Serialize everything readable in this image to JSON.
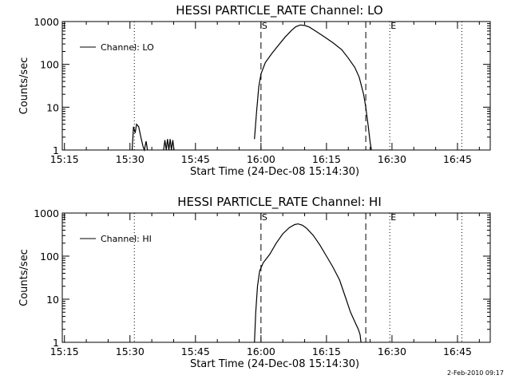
{
  "stamp": "2-Feb-2010 09:17",
  "chart_data": [
    {
      "type": "line",
      "title": "HESSI PARTICLE_RATE Channel: LO",
      "xlabel": "Start Time (24-Dec-08 15:14:30)",
      "ylabel": "Counts/sec",
      "x_unit": "minutes after 15:14:30",
      "xlim": [
        0.0,
        98.0
      ],
      "ylim": [
        1,
        1000
      ],
      "yscale": "log",
      "xticks": [
        {
          "x": 0.5,
          "label": "15:15"
        },
        {
          "x": 15.5,
          "label": "15:30"
        },
        {
          "x": 30.5,
          "label": "15:45"
        },
        {
          "x": 45.5,
          "label": "16:00"
        },
        {
          "x": 60.5,
          "label": "16:15"
        },
        {
          "x": 75.5,
          "label": "16:30"
        },
        {
          "x": 90.5,
          "label": "16:45"
        }
      ],
      "yticks": [
        {
          "y": 1,
          "label": "1"
        },
        {
          "y": 10,
          "label": "10"
        },
        {
          "y": 100,
          "label": "100"
        },
        {
          "y": 1000,
          "label": "1000"
        }
      ],
      "legend": {
        "position": "top-left",
        "entries": [
          "Channel: LO"
        ]
      },
      "vlines": [
        {
          "x": 16.5,
          "style": "dotted",
          "label": ""
        },
        {
          "x": 45.5,
          "style": "dashed",
          "label": "S"
        },
        {
          "x": 69.5,
          "style": "dashed",
          "label": ""
        },
        {
          "x": 75.0,
          "style": "dotted",
          "label": "E"
        },
        {
          "x": 91.5,
          "style": "dotted",
          "label": ""
        }
      ],
      "series": [
        {
          "name": "Channel: LO",
          "segments": [
            [
              [
                16.0,
                1
              ],
              [
                16.3,
                3.5
              ],
              [
                16.7,
                2.5
              ],
              [
                17.0,
                4
              ],
              [
                17.5,
                3.5
              ],
              [
                18.0,
                2
              ],
              [
                18.5,
                1.2
              ],
              [
                18.8,
                1
              ],
              [
                19.2,
                1.6
              ],
              [
                19.5,
                1
              ]
            ],
            [
              [
                23.2,
                1
              ],
              [
                23.5,
                1.7
              ],
              [
                23.8,
                1
              ],
              [
                24.1,
                1.8
              ],
              [
                24.4,
                1
              ],
              [
                24.7,
                1.8
              ],
              [
                25.0,
                1
              ],
              [
                25.3,
                1.7
              ],
              [
                25.6,
                1
              ]
            ],
            [
              [
                44.0,
                1.8
              ],
              [
                44.5,
                8
              ],
              [
                45.0,
                30
              ],
              [
                45.5,
                60
              ],
              [
                46.5,
                110
              ],
              [
                48.0,
                180
              ],
              [
                49.5,
                280
              ],
              [
                51.0,
                430
              ],
              [
                52.5,
                620
              ],
              [
                53.5,
                760
              ],
              [
                54.5,
                830
              ],
              [
                55.5,
                810
              ],
              [
                56.5,
                750
              ],
              [
                58.0,
                600
              ],
              [
                60.0,
                440
              ],
              [
                62.0,
                320
              ],
              [
                64.0,
                220
              ],
              [
                65.5,
                140
              ],
              [
                67.0,
                85
              ],
              [
                68.0,
                50
              ],
              [
                69.0,
                20
              ],
              [
                69.5,
                10
              ],
              [
                70.0,
                4
              ],
              [
                70.5,
                1.5
              ],
              [
                70.8,
                1
              ]
            ]
          ]
        }
      ]
    },
    {
      "type": "line",
      "title": "HESSI PARTICLE_RATE Channel: HI",
      "xlabel": "Start Time (24-Dec-08 15:14:30)",
      "ylabel": "Counts/sec",
      "x_unit": "minutes after 15:14:30",
      "xlim": [
        0.0,
        98.0
      ],
      "ylim": [
        1,
        1000
      ],
      "yscale": "log",
      "xticks": [
        {
          "x": 0.5,
          "label": "15:15"
        },
        {
          "x": 15.5,
          "label": "15:30"
        },
        {
          "x": 30.5,
          "label": "15:45"
        },
        {
          "x": 45.5,
          "label": "16:00"
        },
        {
          "x": 60.5,
          "label": "16:15"
        },
        {
          "x": 75.5,
          "label": "16:30"
        },
        {
          "x": 90.5,
          "label": "16:45"
        }
      ],
      "yticks": [
        {
          "y": 1,
          "label": "1"
        },
        {
          "y": 10,
          "label": "10"
        },
        {
          "y": 100,
          "label": "100"
        },
        {
          "y": 1000,
          "label": "1000"
        }
      ],
      "legend": {
        "position": "top-left",
        "entries": [
          "Channel: HI"
        ]
      },
      "vlines": [
        {
          "x": 16.5,
          "style": "dotted",
          "label": ""
        },
        {
          "x": 45.5,
          "style": "dashed",
          "label": "S"
        },
        {
          "x": 69.5,
          "style": "dashed",
          "label": ""
        },
        {
          "x": 75.0,
          "style": "dotted",
          "label": "E"
        },
        {
          "x": 91.5,
          "style": "dotted",
          "label": ""
        }
      ],
      "series": [
        {
          "name": "Channel: HI",
          "segments": [
            [
              [
                44.0,
                1
              ],
              [
                44.3,
                5
              ],
              [
                44.7,
                20
              ],
              [
                45.2,
                45
              ],
              [
                46.0,
                70
              ],
              [
                47.5,
                110
              ],
              [
                49.0,
                200
              ],
              [
                50.5,
                330
              ],
              [
                52.0,
                460
              ],
              [
                53.2,
                540
              ],
              [
                54.0,
                560
              ],
              [
                55.0,
                520
              ],
              [
                56.0,
                440
              ],
              [
                57.5,
                300
              ],
              [
                59.0,
                180
              ],
              [
                60.5,
                100
              ],
              [
                62.0,
                55
              ],
              [
                63.5,
                28
              ],
              [
                65.0,
                10
              ],
              [
                66.0,
                5
              ],
              [
                67.0,
                3
              ],
              [
                67.8,
                2
              ],
              [
                68.2,
                1.5
              ],
              [
                68.4,
                1
              ]
            ]
          ]
        }
      ]
    }
  ]
}
